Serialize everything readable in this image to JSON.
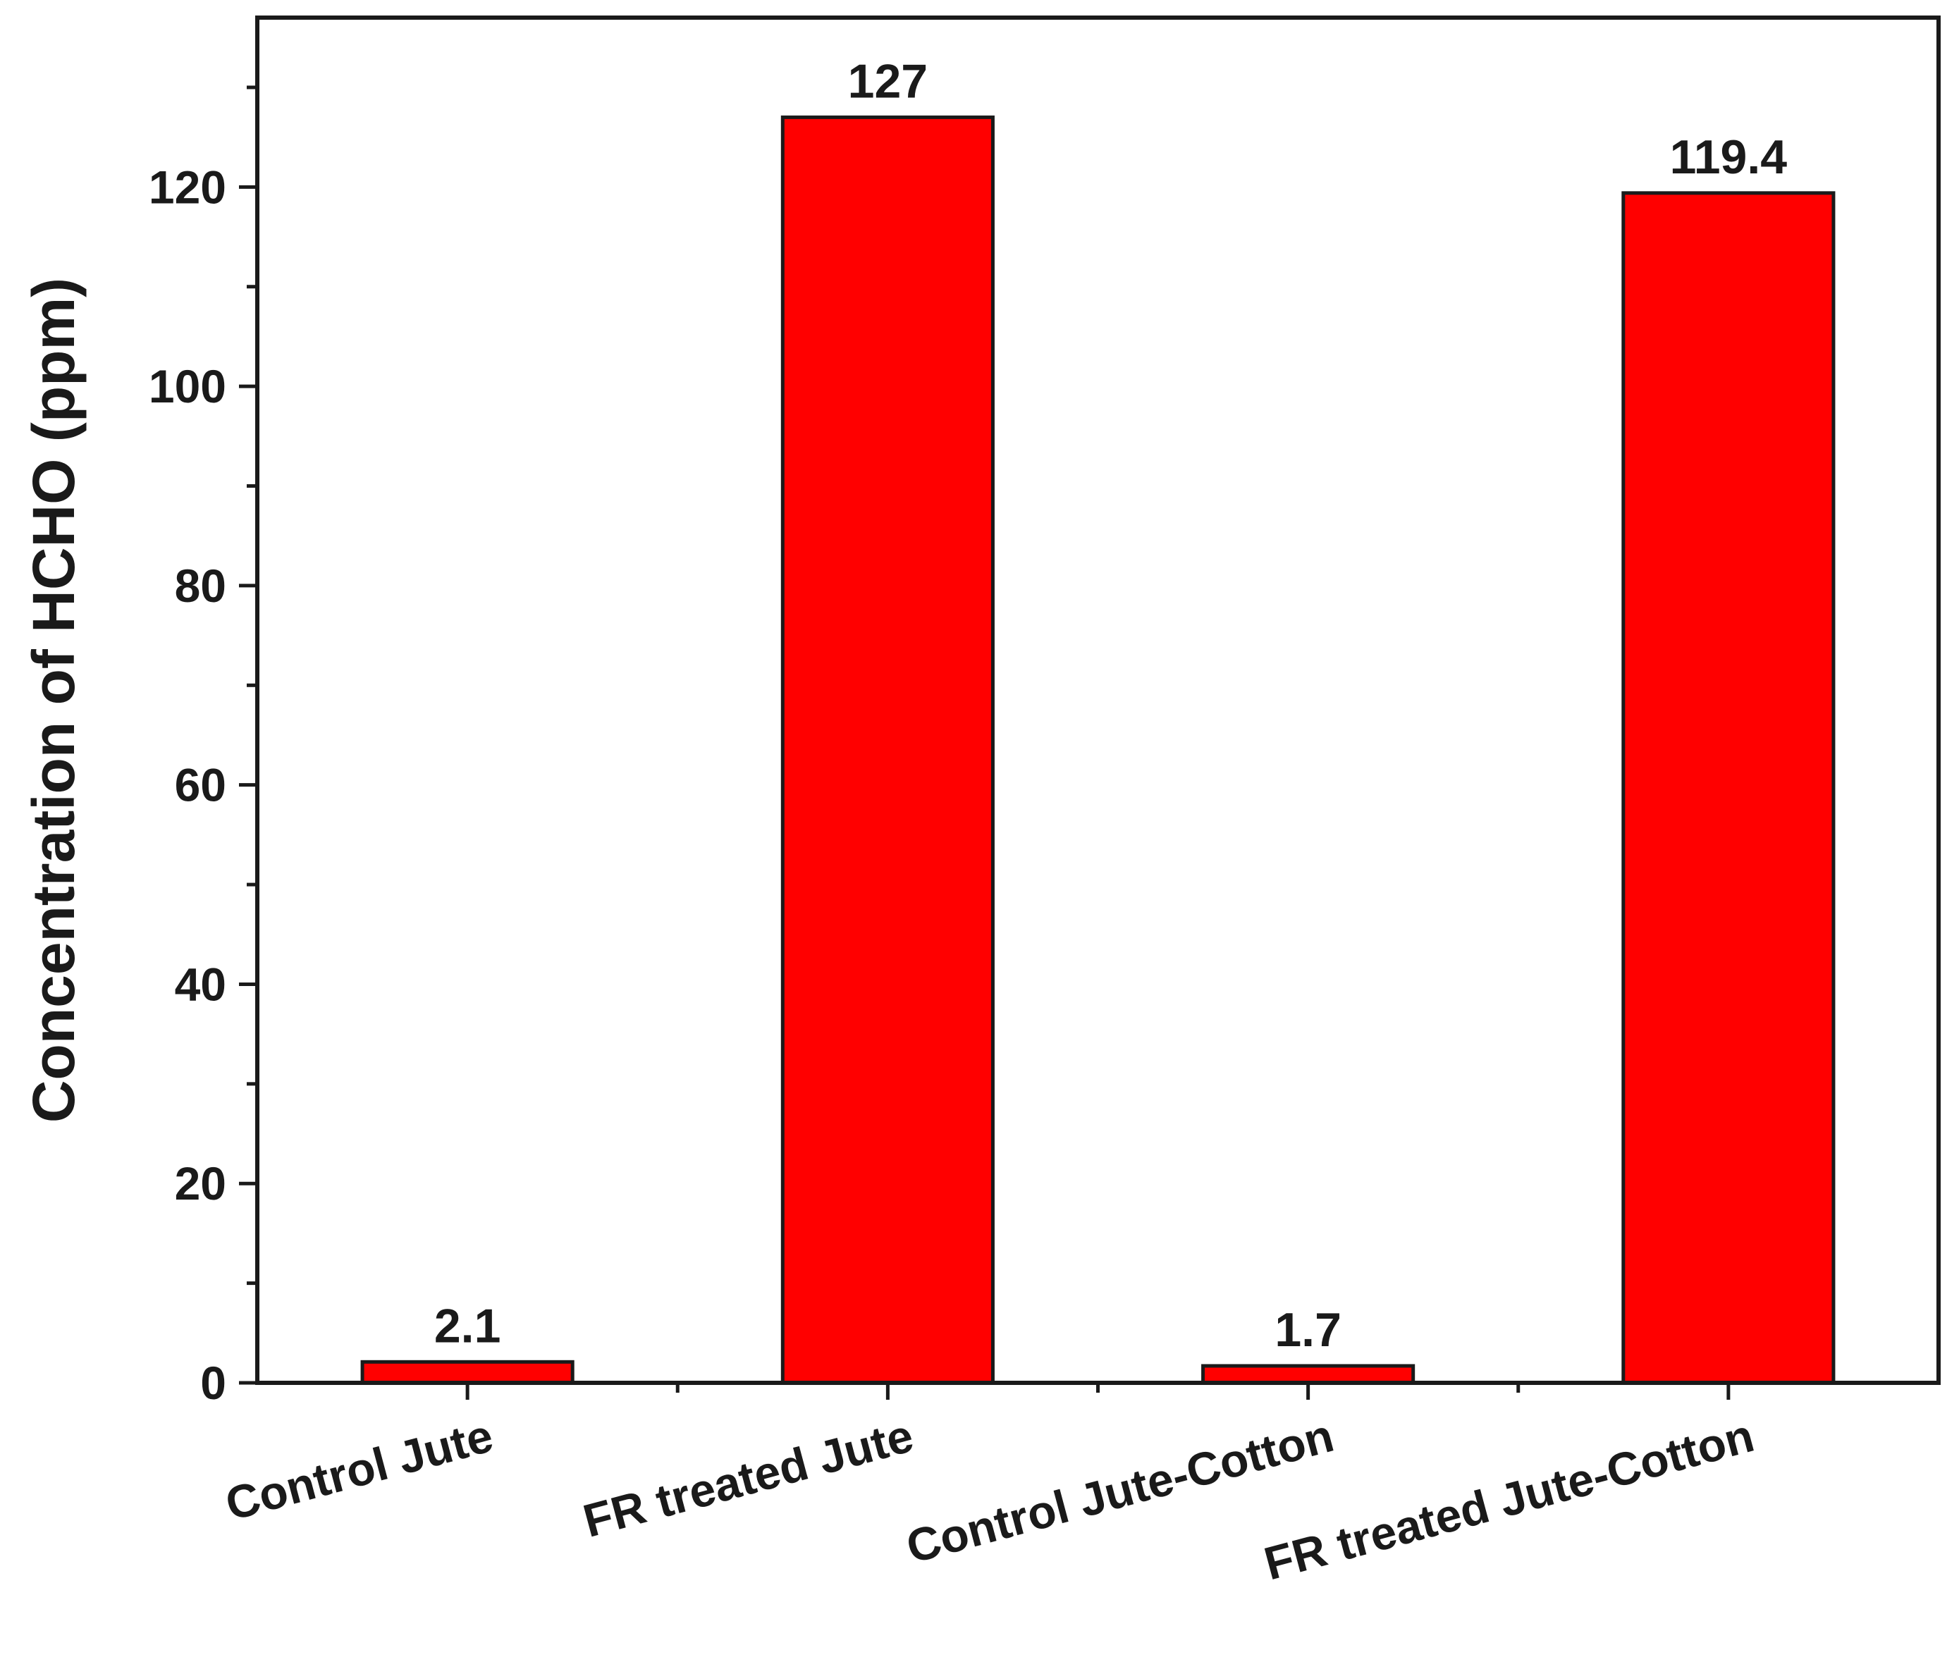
{
  "chart_data": {
    "type": "bar",
    "title": "",
    "xlabel": "",
    "ylabel": "Concentration of HCHO (ppm)",
    "categories": [
      "Control Jute",
      "FR treated Jute",
      "Control Jute-Cotton",
      "FR treated Jute-Cotton"
    ],
    "values": [
      2.1,
      127,
      1.7,
      119.4
    ],
    "data_labels": [
      "2.1",
      "127",
      "1.7",
      "119.4"
    ],
    "ylim": [
      0,
      137
    ],
    "y_ticks": [
      0,
      20,
      40,
      60,
      80,
      100,
      120
    ],
    "y_tick_labels": [
      "0",
      "20",
      "40",
      "60",
      "80",
      "100",
      "120"
    ],
    "y_minor_step": 10,
    "grid": false,
    "legend": "none",
    "bar_color": "#ff0000",
    "bar_edge_color": "#1a1a1a"
  }
}
